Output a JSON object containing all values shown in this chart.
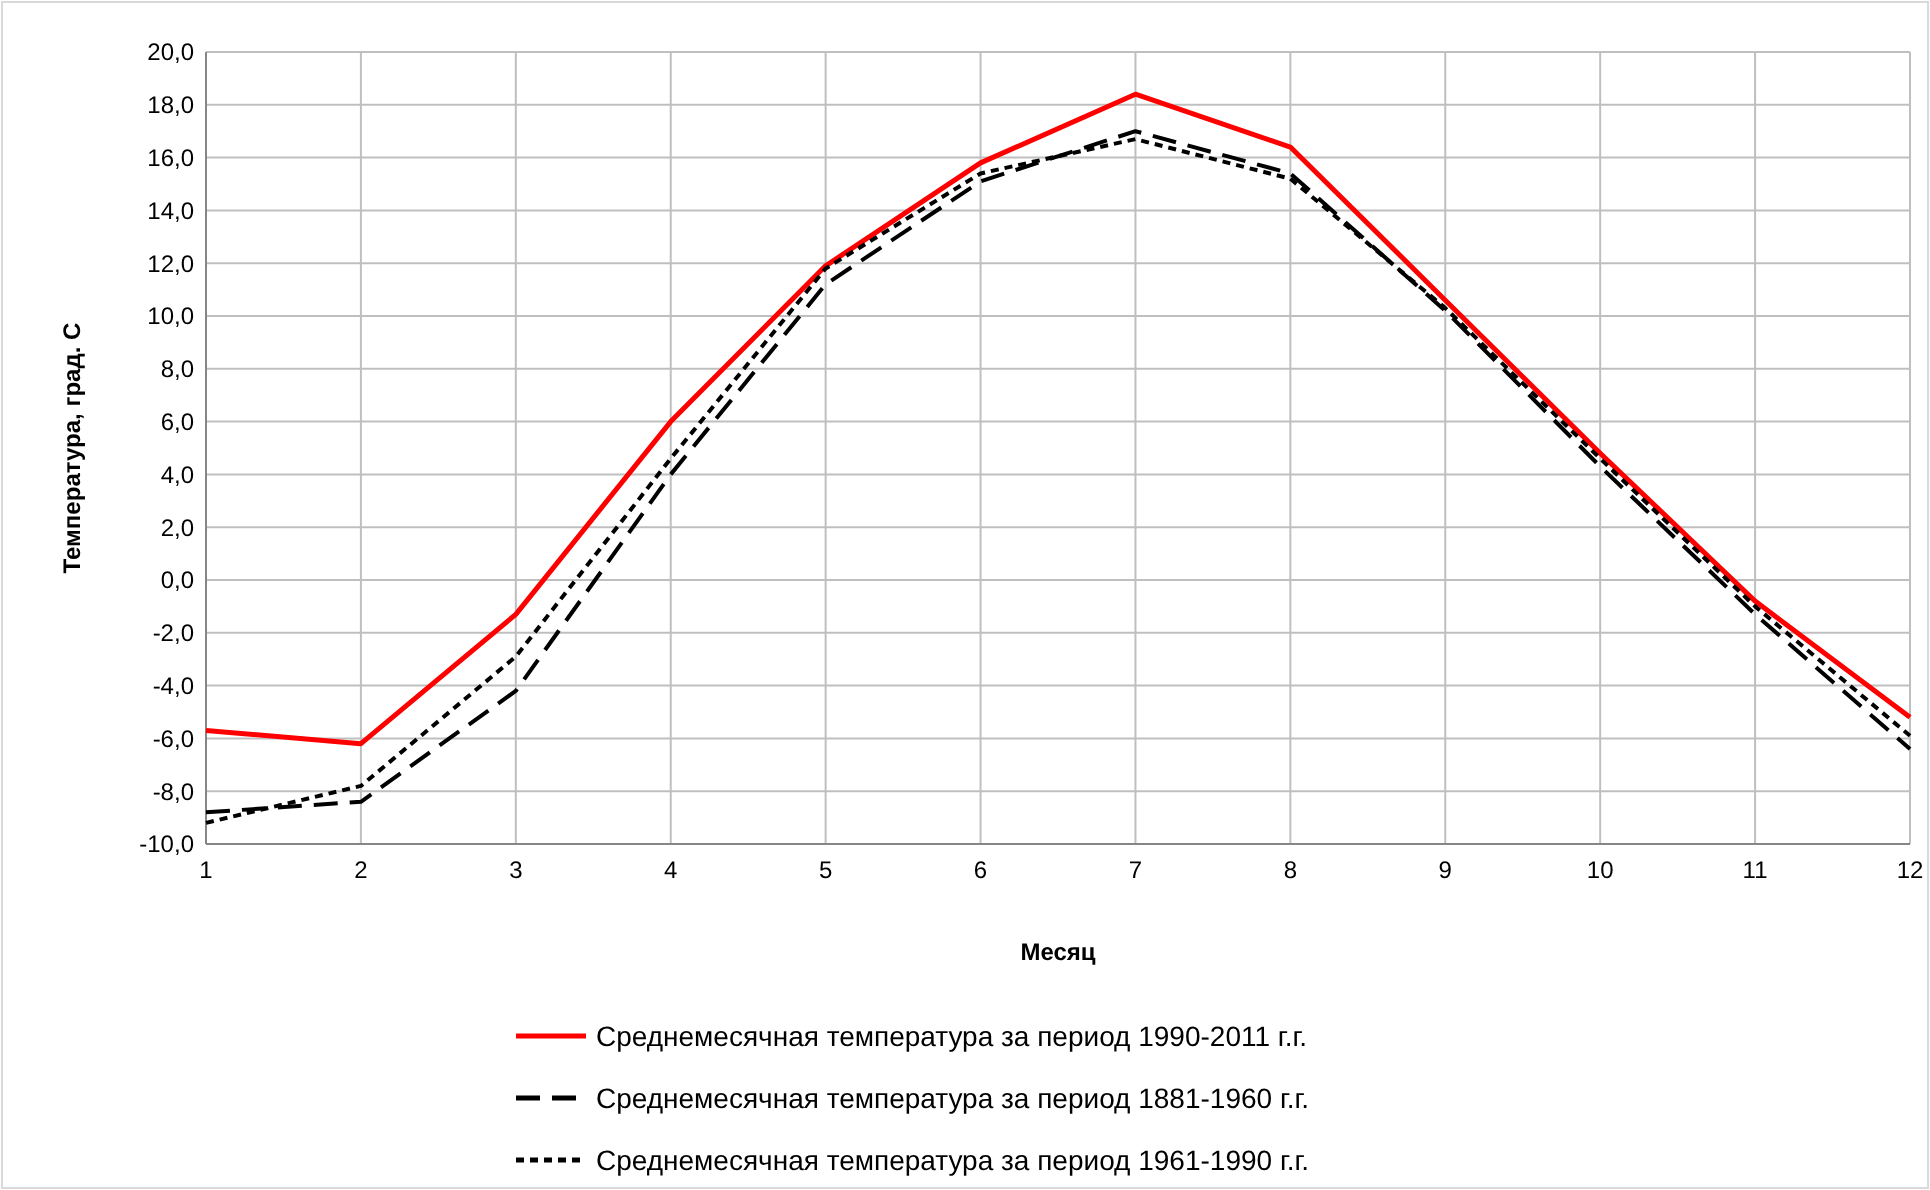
{
  "chart_data": {
    "type": "line",
    "xlabel": "Месяц",
    "ylabel": "Температура, град. С",
    "x": [
      1,
      2,
      3,
      4,
      5,
      6,
      7,
      8,
      9,
      10,
      11,
      12
    ],
    "xlim": [
      1,
      12
    ],
    "xticks": [
      1,
      2,
      3,
      4,
      5,
      6,
      7,
      8,
      9,
      10,
      11,
      12
    ],
    "ylim": [
      -10,
      20
    ],
    "yticks": [
      {
        "value": -10,
        "label": "-10,0"
      },
      {
        "value": -8,
        "label": "-8,0"
      },
      {
        "value": -6,
        "label": "-6,0"
      },
      {
        "value": -4,
        "label": "-4,0"
      },
      {
        "value": -2,
        "label": "-2,0"
      },
      {
        "value": 0,
        "label": "0,0"
      },
      {
        "value": 2,
        "label": "2,0"
      },
      {
        "value": 4,
        "label": "4,0"
      },
      {
        "value": 6,
        "label": "6,0"
      },
      {
        "value": 8,
        "label": "8,0"
      },
      {
        "value": 10,
        "label": "10,0"
      },
      {
        "value": 12,
        "label": "12,0"
      },
      {
        "value": 14,
        "label": "14,0"
      },
      {
        "value": 16,
        "label": "16,0"
      },
      {
        "value": 18,
        "label": "18,0"
      },
      {
        "value": 20,
        "label": "20,0"
      }
    ],
    "grid": true,
    "legend": "bottom",
    "marker": "none",
    "series": [
      {
        "name": "Среднемесячная температура за период 1990-2011 г.г.",
        "color": "#ff0000",
        "line_style": "solid",
        "values": [
          -5.7,
          -6.2,
          -1.3,
          6.0,
          11.9,
          15.8,
          18.4,
          16.4,
          10.6,
          4.8,
          -0.8,
          -5.2
        ]
      },
      {
        "name": "Среднемесячная температура за период 1881-1960 г.г.",
        "color": "#000000",
        "line_style": "dashed",
        "values": [
          -8.8,
          -8.4,
          -4.2,
          4.0,
          11.2,
          15.1,
          17.0,
          15.4,
          10.2,
          4.3,
          -1.3,
          -6.4
        ]
      },
      {
        "name": "Среднемесячная температура за период 1961-1990 г.г.",
        "color": "#000000",
        "line_style": "dotted",
        "values": [
          -9.2,
          -7.8,
          -2.9,
          4.6,
          11.8,
          15.4,
          16.7,
          15.2,
          10.3,
          4.6,
          -1.0,
          -5.9
        ]
      }
    ]
  }
}
